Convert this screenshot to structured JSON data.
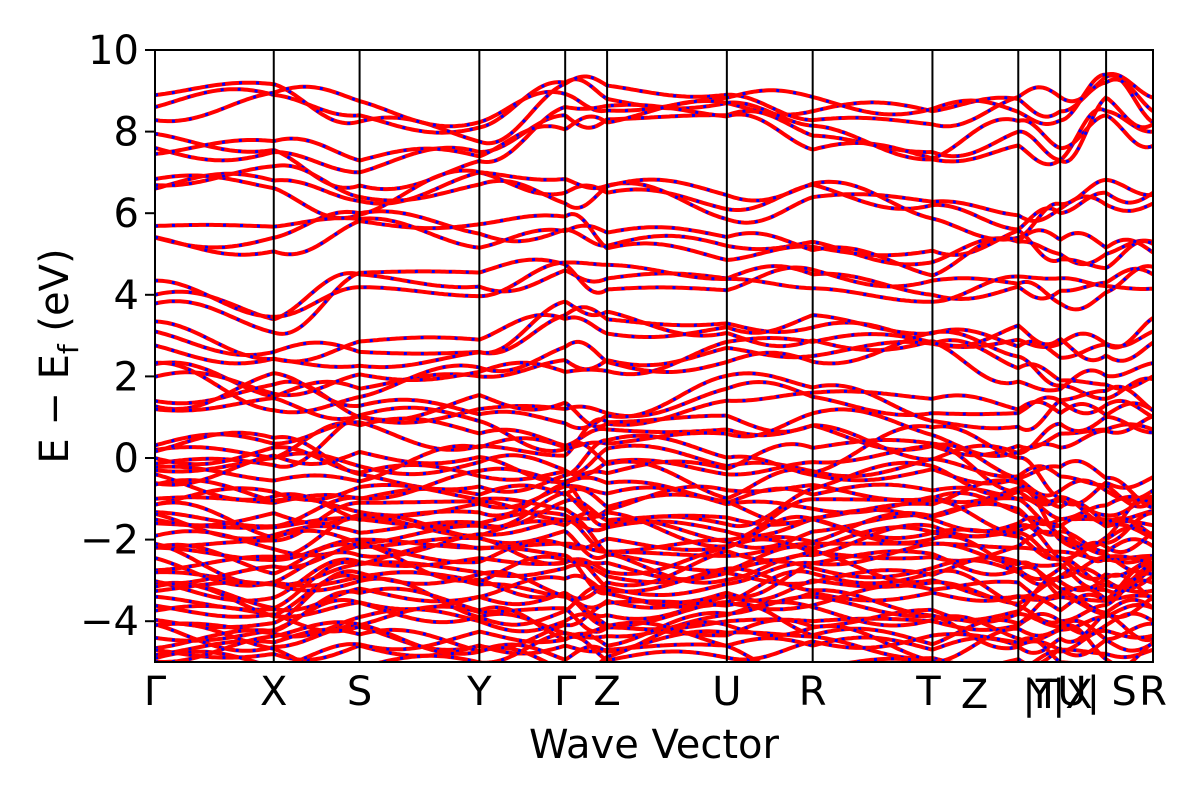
{
  "chart_data": {
    "type": "line",
    "title": "",
    "xlabel": "Wave Vector",
    "ylabel": "E − E_f (eV)",
    "ylabel_parts": {
      "main": "E − E",
      "sub": "f",
      "unit": " (eV)"
    },
    "ylim": [
      -5,
      10
    ],
    "yticks": [
      -4,
      -2,
      0,
      2,
      4,
      6,
      8,
      10
    ],
    "ytick_labels": [
      "−4",
      "−2",
      "0",
      "2",
      "4",
      "6",
      "8",
      "10"
    ],
    "xlim": [
      0,
      1
    ],
    "kpoints": [
      {
        "label": "Γ",
        "x": 0.0
      },
      {
        "label": "X",
        "x": 0.119
      },
      {
        "label": "S",
        "x": 0.205
      },
      {
        "label": "Y",
        "x": 0.325
      },
      {
        "label": "Γ",
        "x": 0.411
      },
      {
        "label": "Z",
        "x": 0.453
      },
      {
        "label": "U",
        "x": 0.573
      },
      {
        "label": "R",
        "x": 0.659
      },
      {
        "label": "T",
        "x": 0.779
      },
      {
        "label": "Z",
        "x": 0.865
      },
      {
        "label": "|T",
        "x": 0.865
      },
      {
        "label": "Y|X",
        "x": 0.907
      },
      {
        "label": "U|",
        "x": 0.953
      },
      {
        "label": "S",
        "x": 0.953
      },
      {
        "label": "R",
        "x": 1.0
      }
    ],
    "colors": {
      "band_red": "#ff0000",
      "band_blue": "#0000ff",
      "axes": "#000000"
    },
    "bands_representative": [
      [
        8.6,
        8.9,
        8.4,
        8.1,
        9.2,
        8.8,
        8.7,
        8.5,
        8.5,
        8.8,
        8.5,
        9.2,
        8.5
      ],
      [
        7.6,
        7.5,
        7.0,
        7.5,
        8.4,
        8.3,
        8.4,
        7.9,
        7.5,
        8.0,
        7.3,
        8.5,
        8.0
      ],
      [
        6.6,
        6.8,
        6.3,
        7.0,
        6.5,
        6.5,
        6.1,
        6.7,
        6.2,
        5.6,
        6.0,
        6.5,
        6.5
      ],
      [
        5.4,
        5.4,
        6.0,
        5.5,
        5.6,
        5.2,
        5.2,
        5.3,
        4.8,
        5.3,
        5.0,
        5.0,
        5.3
      ],
      [
        4.0,
        3.4,
        4.5,
        4.2,
        4.6,
        4.4,
        4.4,
        4.5,
        4.0,
        4.2,
        4.1,
        4.3,
        4.5
      ],
      [
        3.1,
        2.6,
        2.6,
        2.6,
        3.5,
        3.4,
        3.3,
        3.2,
        2.8,
        2.9,
        2.8,
        2.8,
        3.1
      ],
      [
        2.3,
        1.5,
        1.7,
        2.0,
        2.4,
        2.4,
        2.7,
        2.5,
        2.8,
        2.2,
        1.9,
        1.8,
        2.0
      ],
      [
        1.4,
        1.8,
        1.0,
        1.2,
        1.2,
        1.1,
        1.7,
        1.5,
        1.1,
        1.1,
        1.4,
        1.3,
        1.0
      ],
      [
        0.2,
        0.0,
        0.8,
        0.6,
        0.3,
        0.7,
        0.7,
        0.8,
        0.3,
        0.3,
        0.6,
        0.7,
        0.7
      ],
      [
        -0.3,
        0.0,
        -0.2,
        -0.1,
        -0.3,
        -0.1,
        -0.4,
        -0.1,
        0.3,
        -0.5,
        -0.8,
        -0.8,
        -0.8
      ],
      [
        -1.0,
        -1.1,
        -1.0,
        -0.9,
        -0.9,
        -1.2,
        -1.1,
        -0.9,
        -0.8,
        -1.0,
        -1.5,
        -1.5,
        -1.3
      ],
      [
        -1.6,
        -1.7,
        -1.5,
        -1.6,
        -1.4,
        -1.7,
        -1.8,
        -1.5,
        -1.5,
        -1.6,
        -1.9,
        -2.0,
        -1.9
      ],
      [
        -2.2,
        -2.5,
        -2.0,
        -2.2,
        -2.1,
        -2.3,
        -2.4,
        -2.1,
        -2.1,
        -2.2,
        -2.3,
        -2.5,
        -2.4
      ],
      [
        -2.8,
        -3.1,
        -2.6,
        -2.8,
        -2.7,
        -2.9,
        -2.8,
        -2.7,
        -2.7,
        -2.8,
        -2.9,
        -3.0,
        -2.9
      ],
      [
        -3.4,
        -3.7,
        -3.2,
        -3.4,
        -3.3,
        -3.5,
        -3.3,
        -3.3,
        -3.3,
        -3.4,
        -3.4,
        -3.5,
        -3.4
      ],
      [
        -4.1,
        -4.3,
        -3.9,
        -4.0,
        -4.0,
        -4.1,
        -4.0,
        -4.0,
        -4.0,
        -4.1,
        -4.0,
        -4.1,
        -4.0
      ],
      [
        -4.7,
        -4.8,
        -4.6,
        -4.6,
        -4.6,
        -4.7,
        -4.6,
        -4.6,
        -4.7,
        -4.6,
        -4.7,
        -4.8,
        -4.7
      ]
    ]
  }
}
